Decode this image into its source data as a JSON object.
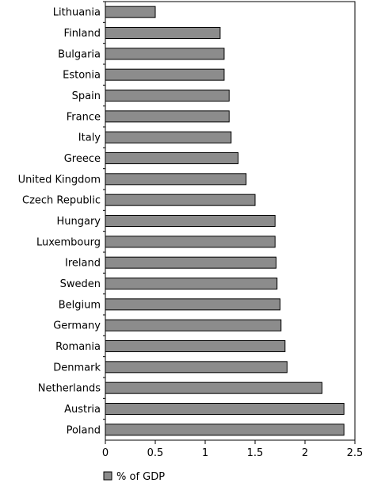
{
  "chart_data": {
    "type": "bar",
    "orientation": "horizontal",
    "categories": [
      "Lithuania",
      "Finland",
      "Bulgaria",
      "Estonia",
      "Spain",
      "France",
      "Italy",
      "Greece",
      "United Kingdom",
      "Czech Republic",
      "Hungary",
      "Luxembourg",
      "Ireland",
      "Sweden",
      "Belgium",
      "Germany",
      "Romania",
      "Denmark",
      "Netherlands",
      "Austria",
      "Poland"
    ],
    "series": [
      {
        "name": "% of GDP",
        "values": [
          0.5,
          1.15,
          1.19,
          1.19,
          1.24,
          1.24,
          1.26,
          1.33,
          1.41,
          1.5,
          1.7,
          1.7,
          1.71,
          1.72,
          1.75,
          1.76,
          1.8,
          1.82,
          2.17,
          2.39,
          2.39
        ]
      }
    ],
    "xlim": [
      0,
      2.5
    ],
    "xticks": [
      "0",
      "0.5",
      "1",
      "1.5",
      "2",
      "2.5"
    ],
    "title": "",
    "xlabel": "",
    "ylabel": "",
    "legend": {
      "position": "bottom-left",
      "entries": [
        "% of GDP"
      ]
    },
    "grid": false,
    "colors": {
      "bar_fill": "#8c8c8c",
      "bar_stroke": "#000000"
    }
  }
}
